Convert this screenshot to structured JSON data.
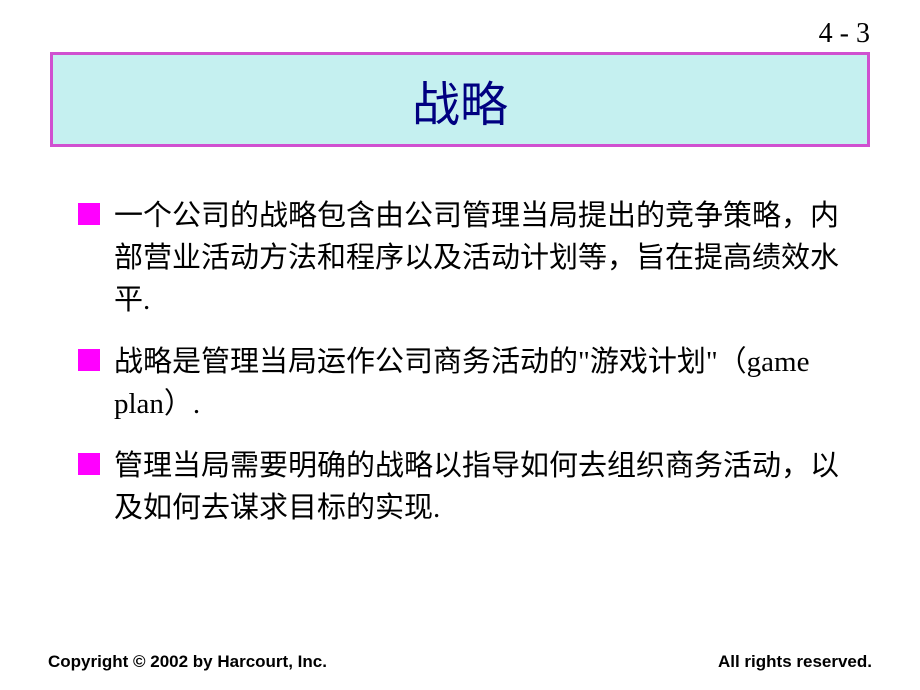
{
  "page_number": "4 - 3",
  "title": {
    "text": "战略",
    "box_background": "#c5f0f0",
    "box_border_color": "#d050d0",
    "text_color": "#000080",
    "font_size": 48
  },
  "bullets": [
    {
      "text": "一个公司的战略包含由公司管理当局提出的竞争策略，内部营业活动方法和程序以及活动计划等，旨在提高绩效水平."
    },
    {
      "text": "战略是管理当局运作公司商务活动的\"游戏计划\"（game plan）."
    },
    {
      "text": " 管理当局需要明确的战略以指导如何去组织商务活动，以及如何去谋求目标的实现."
    }
  ],
  "bullet_marker_color": "#ff00ff",
  "body_font_size": 29,
  "footer": {
    "left": "Copyright © 2002 by Harcourt, Inc.",
    "right": "All rights reserved."
  }
}
